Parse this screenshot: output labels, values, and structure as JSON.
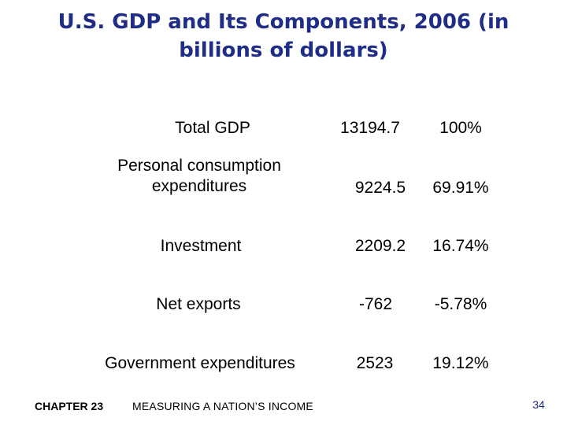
{
  "title": "U.S. GDP and Its Components, 2006 (in billions of dollars)",
  "table": {
    "rows": [
      {
        "label": "Total GDP",
        "value": "13194.7",
        "percent": "100%"
      },
      {
        "label": "Personal consumption expenditures",
        "value": "9224.5",
        "percent": "69.91%"
      },
      {
        "label": "Investment",
        "value": "2209.2",
        "percent": "16.74%"
      },
      {
        "label": "Net exports",
        "value": "-762",
        "percent": "-5.78%"
      },
      {
        "label": "Government expenditures",
        "value": "2523",
        "percent": "19.12%"
      }
    ]
  },
  "footer": {
    "chapter": "CHAPTER 23",
    "subject": "MEASURING A NATION’S INCOME",
    "page_number": "34"
  },
  "colors": {
    "title": "#1f2d86",
    "text": "#000000",
    "background": "#ffffff"
  }
}
